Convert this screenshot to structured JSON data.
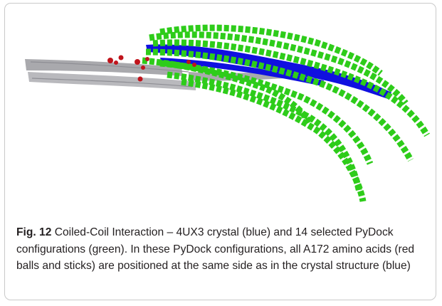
{
  "figure": {
    "label": "Fig. 12",
    "caption": " Coiled-Coil Interaction – 4UX3 crystal (blue) and 14 selected PyDock configurations (green). In these PyDock configurations, all A172 amino acids (red balls and sticks) are positioned at the same side as in the crystal structure (blue)",
    "colors": {
      "crystal": "#1010e0",
      "pydock": "#2ecc1a",
      "reference": "#a9a9ad",
      "residue": "#c0141c"
    }
  }
}
